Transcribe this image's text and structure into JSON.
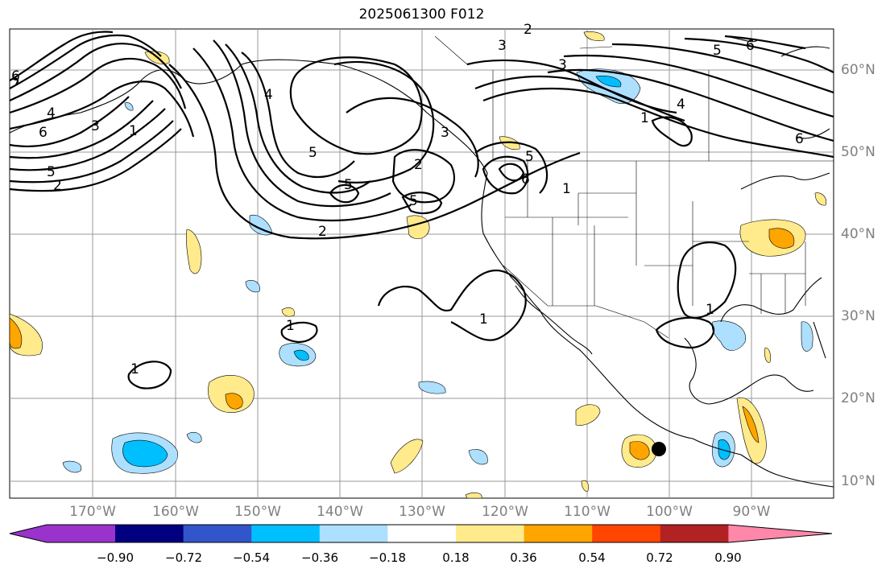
{
  "title": "2025061300 F012",
  "lon_labels": [
    "170°W",
    "160°W",
    "150°W",
    "140°W",
    "130°W",
    "120°W",
    "110°W",
    "100°W",
    "90°W"
  ],
  "lat_labels": [
    "60°N",
    "50°N",
    "40°N",
    "30°N",
    "20°N",
    "10°N"
  ],
  "colorbar": {
    "ticks": [
      "−0.90",
      "−0.72",
      "−0.54",
      "−0.36",
      "−0.18",
      "0.18",
      "0.36",
      "0.54",
      "0.72",
      "0.90"
    ],
    "colors": [
      "#9933cc",
      "#000080",
      "#3355cc",
      "#00bfff",
      "#addfff",
      "#ffffff",
      "#ffea8c",
      "#ffa500",
      "#ff4500",
      "#b22222",
      "#ff88aa"
    ]
  },
  "contour_labels": [
    "6",
    "4",
    "6",
    "3",
    "5",
    "2",
    "1",
    "4",
    "5",
    "5",
    "2",
    "3",
    "5",
    "5",
    "6",
    "1",
    "2",
    "1",
    "1",
    "1",
    "1",
    "3",
    "5",
    "6",
    "4",
    "1",
    "6",
    "3",
    "2"
  ],
  "marker": "storm-center"
}
